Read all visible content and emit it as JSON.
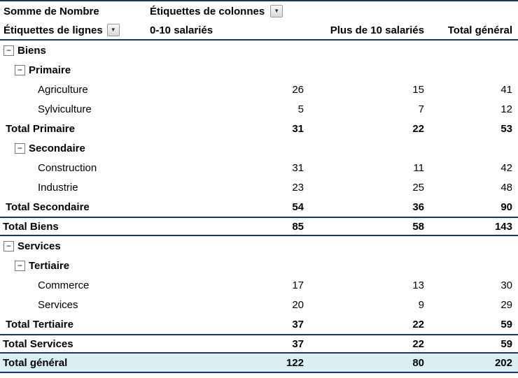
{
  "pivot": {
    "value_field_label": "Somme de Nombre",
    "column_field_label": "Étiquettes de colonnes",
    "row_field_label": "Étiquettes de lignes",
    "column_headers": [
      "0-10 salariés",
      "Plus de 10 salariés",
      "Total général"
    ],
    "icons": {
      "dropdown_arrow": "▼",
      "collapse_sign": "−"
    },
    "colors": {
      "border": "#17375E",
      "grand_total_fill": "#DAEEF3"
    },
    "rows": [
      {
        "label": "Biens",
        "kind": "group",
        "level": 0,
        "collapsible": true,
        "values": [
          "",
          "",
          ""
        ]
      },
      {
        "label": "Primaire",
        "kind": "group",
        "level": 1,
        "collapsible": true,
        "values": [
          "",
          "",
          ""
        ]
      },
      {
        "label": "Agriculture",
        "kind": "item",
        "level": 2,
        "collapsible": false,
        "values": [
          "26",
          "15",
          "41"
        ]
      },
      {
        "label": "Sylviculture",
        "kind": "item",
        "level": 2,
        "collapsible": false,
        "values": [
          "5",
          "7",
          "12"
        ]
      },
      {
        "label": "Total Primaire",
        "kind": "subtotal",
        "level": 1,
        "collapsible": false,
        "values": [
          "31",
          "22",
          "53"
        ]
      },
      {
        "label": "Secondaire",
        "kind": "group",
        "level": 1,
        "collapsible": true,
        "values": [
          "",
          "",
          ""
        ]
      },
      {
        "label": "Construction",
        "kind": "item",
        "level": 2,
        "collapsible": false,
        "values": [
          "31",
          "11",
          "42"
        ]
      },
      {
        "label": "Industrie",
        "kind": "item",
        "level": 2,
        "collapsible": false,
        "values": [
          "23",
          "25",
          "48"
        ]
      },
      {
        "label": "Total Secondaire",
        "kind": "subtotal",
        "level": 1,
        "collapsible": false,
        "values": [
          "54",
          "36",
          "90"
        ]
      },
      {
        "label": "Total Biens",
        "kind": "section-total",
        "level": 0,
        "collapsible": false,
        "values": [
          "85",
          "58",
          "143"
        ]
      },
      {
        "label": "Services",
        "kind": "group",
        "level": 0,
        "collapsible": true,
        "values": [
          "",
          "",
          ""
        ]
      },
      {
        "label": "Tertiaire",
        "kind": "group",
        "level": 1,
        "collapsible": true,
        "values": [
          "",
          "",
          ""
        ]
      },
      {
        "label": "Commerce",
        "kind": "item",
        "level": 2,
        "collapsible": false,
        "values": [
          "17",
          "13",
          "30"
        ]
      },
      {
        "label": "Services",
        "kind": "item",
        "level": 2,
        "collapsible": false,
        "values": [
          "20",
          "9",
          "29"
        ]
      },
      {
        "label": "Total Tertiaire",
        "kind": "subtotal",
        "level": 1,
        "collapsible": false,
        "values": [
          "37",
          "22",
          "59"
        ]
      },
      {
        "label": "Total Services",
        "kind": "section-total",
        "level": 0,
        "collapsible": false,
        "values": [
          "37",
          "22",
          "59"
        ]
      },
      {
        "label": "Total général",
        "kind": "grand-total",
        "level": 0,
        "collapsible": false,
        "values": [
          "122",
          "80",
          "202"
        ]
      }
    ]
  }
}
